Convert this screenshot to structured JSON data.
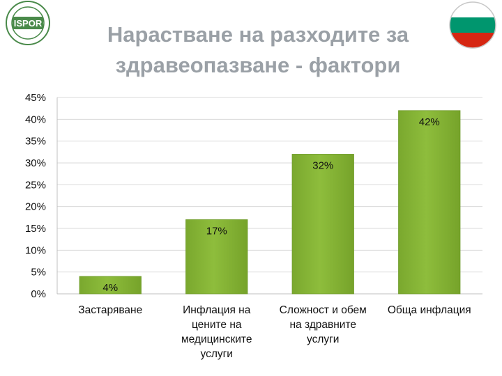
{
  "header": {
    "title_line1": "Нарастване на разходите за",
    "title_line2": "здравеопазване - фактори",
    "logo_text": "ISPOR",
    "logo_ring_text": "INTERNATIONAL SOCIETY FOR PHARMACOECONOMICS AND OUTCOMES RESEARCH",
    "flag_colors": [
      "#ffffff",
      "#00966e",
      "#d62612"
    ]
  },
  "chart_data": {
    "type": "bar",
    "categories": [
      [
        "Застаряване"
      ],
      [
        "Инфлация на",
        "цените на",
        "медицинските",
        "услуги"
      ],
      [
        "Сложност и обем",
        "на здравните",
        "услуги"
      ],
      [
        "Обща инфлация"
      ]
    ],
    "values": [
      4,
      17,
      32,
      42
    ],
    "data_labels": [
      "4%",
      "17%",
      "32%",
      "42%"
    ],
    "ylim": [
      0,
      45
    ],
    "yticks": [
      0,
      5,
      10,
      15,
      20,
      25,
      30,
      35,
      40,
      45
    ],
    "ytick_labels": [
      "0%",
      "5%",
      "10%",
      "15%",
      "20%",
      "25%",
      "30%",
      "35%",
      "40%",
      "45%"
    ],
    "grid": true,
    "bar_color": "#8ebd3c"
  }
}
